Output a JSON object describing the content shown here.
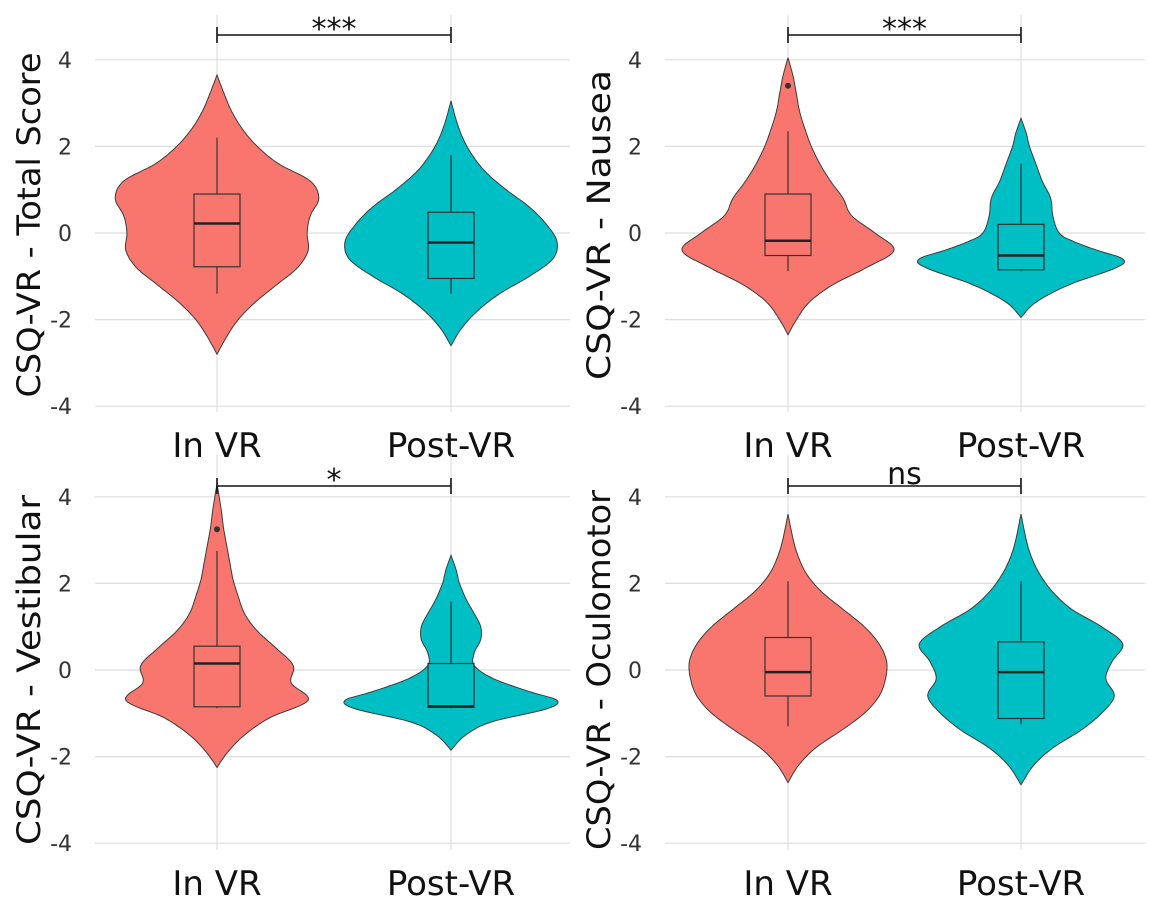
{
  "figure": {
    "categories": [
      "In VR",
      "Post-VR"
    ],
    "colors": {
      "In VR": "#F8766D",
      "Post-VR": "#00BFC4"
    },
    "y_ticks": [
      -4,
      -2,
      0,
      2,
      4
    ]
  },
  "chart_data": [
    {
      "type": "violin",
      "ylabel": "CSQ-VR - Total Score",
      "ylim": [
        -4.4,
        4.6
      ],
      "grid": true,
      "categories": [
        "In VR",
        "Post-VR"
      ],
      "series": [
        {
          "name": "In VR",
          "violin_range": [
            -2.8,
            3.65
          ],
          "density_profile": [
            [
              -2.8,
              0.0
            ],
            [
              -2.4,
              0.09
            ],
            [
              -2.0,
              0.2
            ],
            [
              -1.6,
              0.36
            ],
            [
              -1.2,
              0.56
            ],
            [
              -0.8,
              0.76
            ],
            [
              -0.4,
              0.86
            ],
            [
              0.0,
              0.85
            ],
            [
              0.4,
              0.88
            ],
            [
              0.8,
              0.96
            ],
            [
              1.2,
              0.88
            ],
            [
              1.6,
              0.58
            ],
            [
              2.0,
              0.38
            ],
            [
              2.4,
              0.24
            ],
            [
              2.8,
              0.14
            ],
            [
              3.2,
              0.07
            ],
            [
              3.65,
              0.0
            ]
          ],
          "box": {
            "whisker_low": -1.4,
            "q1": -0.78,
            "median": 0.22,
            "q3": 0.9,
            "whisker_high": 2.2
          },
          "outliers": []
        },
        {
          "name": "Post-VR",
          "violin_range": [
            -2.6,
            3.05
          ],
          "density_profile": [
            [
              -2.6,
              0.0
            ],
            [
              -2.2,
              0.1
            ],
            [
              -1.8,
              0.25
            ],
            [
              -1.4,
              0.46
            ],
            [
              -1.0,
              0.74
            ],
            [
              -0.6,
              0.96
            ],
            [
              -0.2,
              1.0
            ],
            [
              0.2,
              0.9
            ],
            [
              0.6,
              0.74
            ],
            [
              1.0,
              0.52
            ],
            [
              1.4,
              0.33
            ],
            [
              1.8,
              0.2
            ],
            [
              2.2,
              0.11
            ],
            [
              2.6,
              0.05
            ],
            [
              3.05,
              0.0
            ]
          ],
          "box": {
            "whisker_low": -1.4,
            "q1": -1.05,
            "median": -0.22,
            "q3": 0.48,
            "whisker_high": 1.8
          },
          "outliers": []
        }
      ],
      "significance": "***"
    },
    {
      "type": "violin",
      "ylabel": "CSQ-VR - Nausea",
      "ylim": [
        -4.4,
        4.6
      ],
      "grid": true,
      "categories": [
        "In VR",
        "Post-VR"
      ],
      "series": [
        {
          "name": "In VR",
          "violin_range": [
            -2.35,
            4.05
          ],
          "density_profile": [
            [
              -2.35,
              0.0
            ],
            [
              -2.0,
              0.08
            ],
            [
              -1.6,
              0.2
            ],
            [
              -1.2,
              0.42
            ],
            [
              -0.8,
              0.74
            ],
            [
              -0.4,
              1.0
            ],
            [
              0.0,
              0.82
            ],
            [
              0.4,
              0.6
            ],
            [
              0.8,
              0.52
            ],
            [
              1.2,
              0.4
            ],
            [
              1.6,
              0.3
            ],
            [
              2.0,
              0.22
            ],
            [
              2.4,
              0.16
            ],
            [
              2.8,
              0.11
            ],
            [
              3.2,
              0.08
            ],
            [
              3.6,
              0.05
            ],
            [
              4.05,
              0.0
            ]
          ],
          "box": {
            "whisker_low": -0.88,
            "q1": -0.52,
            "median": -0.18,
            "q3": 0.9,
            "whisker_high": 2.35
          },
          "outliers": [
            3.4
          ]
        },
        {
          "name": "Post-VR",
          "violin_range": [
            -1.95,
            2.65
          ],
          "density_profile": [
            [
              -1.95,
              0.0
            ],
            [
              -1.6,
              0.14
            ],
            [
              -1.2,
              0.45
            ],
            [
              -0.8,
              0.9
            ],
            [
              -0.6,
              0.96
            ],
            [
              -0.4,
              0.72
            ],
            [
              -0.2,
              0.5
            ],
            [
              0.0,
              0.36
            ],
            [
              0.4,
              0.3
            ],
            [
              0.8,
              0.28
            ],
            [
              1.2,
              0.2
            ],
            [
              1.6,
              0.14
            ],
            [
              2.0,
              0.08
            ],
            [
              2.3,
              0.05
            ],
            [
              2.65,
              0.0
            ]
          ],
          "box": {
            "whisker_low": -0.88,
            "q1": -0.85,
            "median": -0.52,
            "q3": 0.2,
            "whisker_high": 1.6
          },
          "outliers": []
        }
      ],
      "significance": "***"
    },
    {
      "type": "violin",
      "ylabel": "CSQ-VR - Vestibular",
      "ylim": [
        -4.4,
        4.6
      ],
      "grid": true,
      "categories": [
        "In VR",
        "Post-VR"
      ],
      "series": [
        {
          "name": "In VR",
          "violin_range": [
            -2.25,
            4.3
          ],
          "density_profile": [
            [
              -2.25,
              0.0
            ],
            [
              -1.9,
              0.1
            ],
            [
              -1.5,
              0.26
            ],
            [
              -1.1,
              0.5
            ],
            [
              -0.7,
              0.86
            ],
            [
              -0.3,
              0.7
            ],
            [
              0.1,
              0.72
            ],
            [
              0.5,
              0.56
            ],
            [
              0.9,
              0.38
            ],
            [
              1.3,
              0.26
            ],
            [
              1.7,
              0.2
            ],
            [
              2.1,
              0.15
            ],
            [
              2.5,
              0.12
            ],
            [
              2.9,
              0.09
            ],
            [
              3.3,
              0.06
            ],
            [
              3.7,
              0.04
            ],
            [
              4.3,
              0.0
            ]
          ],
          "box": {
            "whisker_low": -0.88,
            "q1": -0.85,
            "median": 0.15,
            "q3": 0.55,
            "whisker_high": 2.75
          },
          "outliers": [
            3.25
          ]
        },
        {
          "name": "Post-VR",
          "violin_range": [
            -1.85,
            2.65
          ],
          "density_profile": [
            [
              -1.85,
              0.0
            ],
            [
              -1.5,
              0.14
            ],
            [
              -1.2,
              0.38
            ],
            [
              -0.9,
              0.9
            ],
            [
              -0.7,
              1.0
            ],
            [
              -0.5,
              0.74
            ],
            [
              -0.2,
              0.4
            ],
            [
              0.1,
              0.22
            ],
            [
              0.4,
              0.22
            ],
            [
              0.7,
              0.28
            ],
            [
              1.0,
              0.28
            ],
            [
              1.3,
              0.22
            ],
            [
              1.6,
              0.15
            ],
            [
              2.0,
              0.08
            ],
            [
              2.3,
              0.05
            ],
            [
              2.65,
              0.0
            ]
          ],
          "box": {
            "whisker_low": -0.88,
            "q1": -0.86,
            "median": -0.84,
            "q3": 0.15,
            "whisker_high": 1.58
          },
          "outliers": []
        }
      ],
      "significance": "*"
    },
    {
      "type": "violin",
      "ylabel": "CSQ-VR - Oculomotor",
      "ylim": [
        -4.4,
        4.6
      ],
      "grid": true,
      "categories": [
        "In VR",
        "Post-VR"
      ],
      "series": [
        {
          "name": "In VR",
          "violin_range": [
            -2.6,
            3.6
          ],
          "density_profile": [
            [
              -2.6,
              0.0
            ],
            [
              -2.2,
              0.1
            ],
            [
              -1.8,
              0.26
            ],
            [
              -1.4,
              0.5
            ],
            [
              -1.0,
              0.72
            ],
            [
              -0.6,
              0.86
            ],
            [
              -0.2,
              0.92
            ],
            [
              0.2,
              0.93
            ],
            [
              0.6,
              0.86
            ],
            [
              1.0,
              0.72
            ],
            [
              1.4,
              0.52
            ],
            [
              1.8,
              0.32
            ],
            [
              2.2,
              0.18
            ],
            [
              2.6,
              0.1
            ],
            [
              3.0,
              0.05
            ],
            [
              3.6,
              0.0
            ]
          ],
          "box": {
            "whisker_low": -1.3,
            "q1": -0.6,
            "median": -0.05,
            "q3": 0.75,
            "whisker_high": 2.05
          },
          "outliers": []
        },
        {
          "name": "Post-VR",
          "violin_range": [
            -2.65,
            3.6
          ],
          "density_profile": [
            [
              -2.65,
              0.0
            ],
            [
              -2.2,
              0.12
            ],
            [
              -1.8,
              0.3
            ],
            [
              -1.4,
              0.56
            ],
            [
              -1.0,
              0.76
            ],
            [
              -0.6,
              0.88
            ],
            [
              -0.2,
              0.8
            ],
            [
              0.2,
              0.86
            ],
            [
              0.6,
              0.96
            ],
            [
              1.0,
              0.76
            ],
            [
              1.4,
              0.48
            ],
            [
              1.8,
              0.3
            ],
            [
              2.2,
              0.18
            ],
            [
              2.6,
              0.1
            ],
            [
              3.0,
              0.05
            ],
            [
              3.6,
              0.0
            ]
          ],
          "box": {
            "whisker_low": -1.25,
            "q1": -1.12,
            "median": -0.05,
            "q3": 0.65,
            "whisker_high": 2.05
          },
          "outliers": []
        }
      ],
      "significance": "ns"
    }
  ]
}
